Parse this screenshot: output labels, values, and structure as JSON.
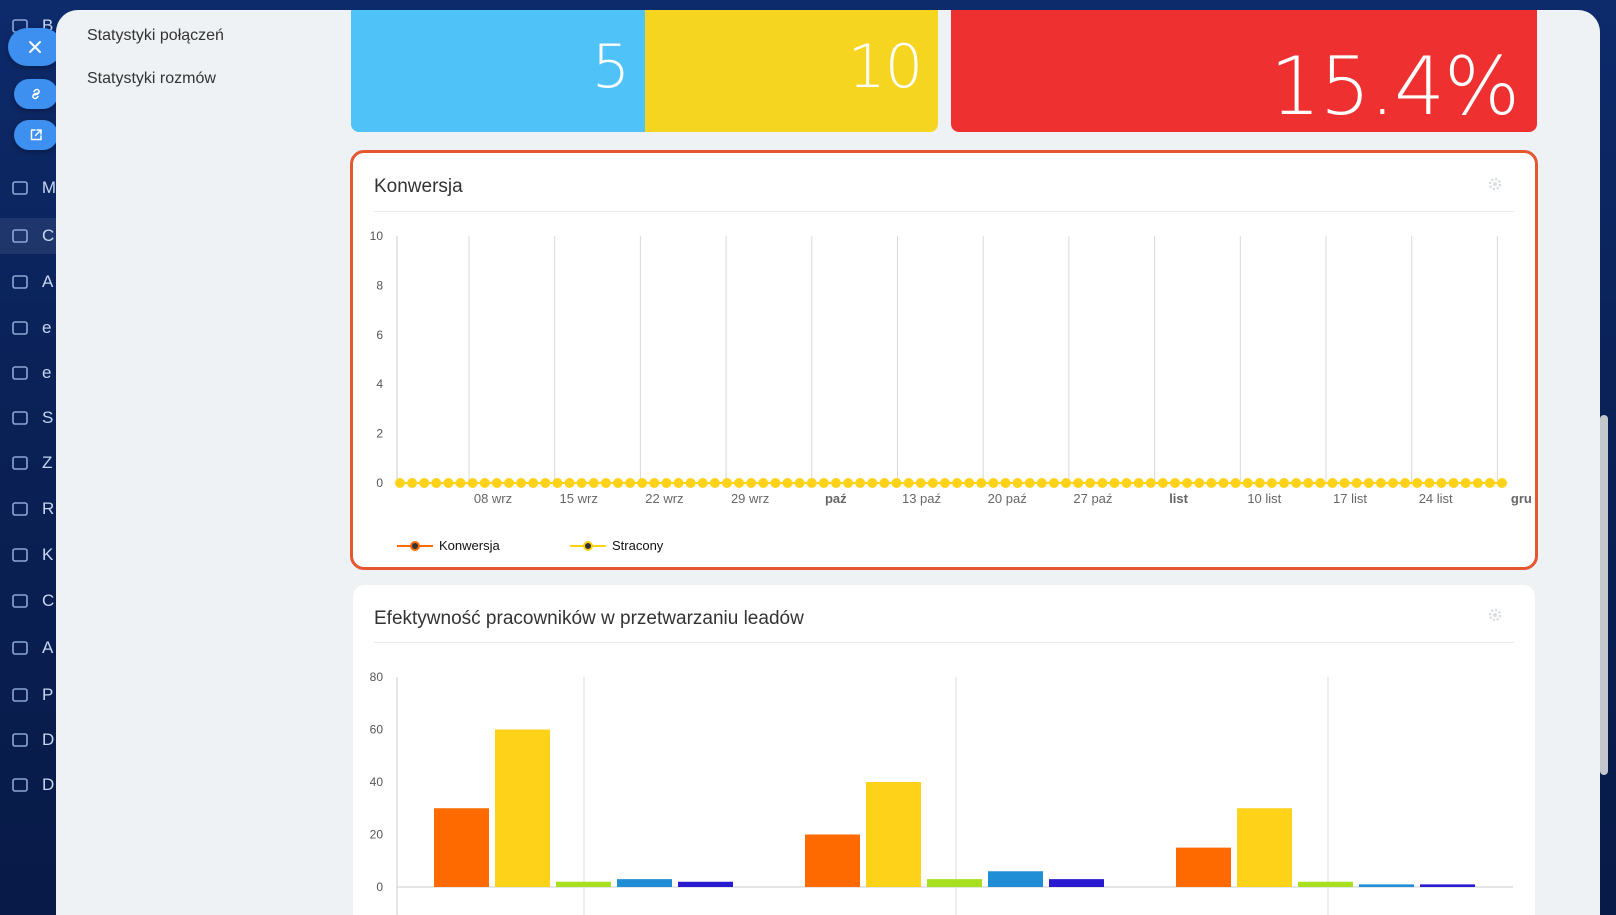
{
  "side_menu": {
    "items": [
      "Statystyki połączeń",
      "Statystyki rozmów"
    ]
  },
  "nav": {
    "partial_labels": [
      "B",
      "M",
      "C",
      "A",
      "e",
      "e",
      "S",
      "Z",
      "R",
      "K",
      "C",
      "A",
      "P",
      "D",
      "D"
    ]
  },
  "tiles": {
    "blue_value": "5",
    "yellow_value": "10",
    "red_value": "15.4%"
  },
  "colors": {
    "tile_blue": "#4fc3f7",
    "tile_yellow": "#f6d520",
    "tile_red": "#ef3030",
    "highlight_border": "#e5572e",
    "conv_series": "#ff6a00",
    "lost_series": "#ffd21a"
  },
  "conversion_card": {
    "title": "Konwersja",
    "legend": [
      "Konwersja",
      "Stracony"
    ]
  },
  "efficiency_card": {
    "title": "Efektywność pracowników w przetwarzaniu leadów"
  },
  "chart_data": [
    {
      "type": "line",
      "title": "Konwersja",
      "x_ticks": [
        "08 wrz",
        "15 wrz",
        "22 wrz",
        "29 wrz",
        "paź",
        "13 paź",
        "20 paź",
        "27 paź",
        "list",
        "10 list",
        "17 list",
        "24 list",
        "gru"
      ],
      "x_ticks_bold": [
        "paź",
        "list",
        "gru"
      ],
      "y_ticks": [
        0,
        2,
        4,
        6,
        8,
        10
      ],
      "ylim": [
        0,
        10
      ],
      "point_count": 92,
      "series": [
        {
          "name": "Konwersja",
          "color": "#ff6a00",
          "value_all_points": 0
        },
        {
          "name": "Stracony",
          "color": "#ffd21a",
          "value_all_points": 0
        }
      ],
      "grid": "vertical",
      "legend_position": "bottom-left"
    },
    {
      "type": "bar",
      "title": "Efektywność pracowników w przetwarzaniu leadów",
      "y_ticks": [
        0,
        20,
        40,
        60,
        80
      ],
      "ylim": [
        0,
        80
      ],
      "groups": [
        {
          "values": [
            30,
            60,
            2,
            3,
            2
          ]
        },
        {
          "values": [
            20,
            40,
            3,
            6,
            3
          ]
        },
        {
          "values": [
            15,
            30,
            2,
            1,
            1
          ]
        }
      ],
      "bar_colors": [
        "#ff6a00",
        "#ffd21a",
        "#a8e01f",
        "#1f8ed6",
        "#2a1bd0"
      ]
    }
  ]
}
